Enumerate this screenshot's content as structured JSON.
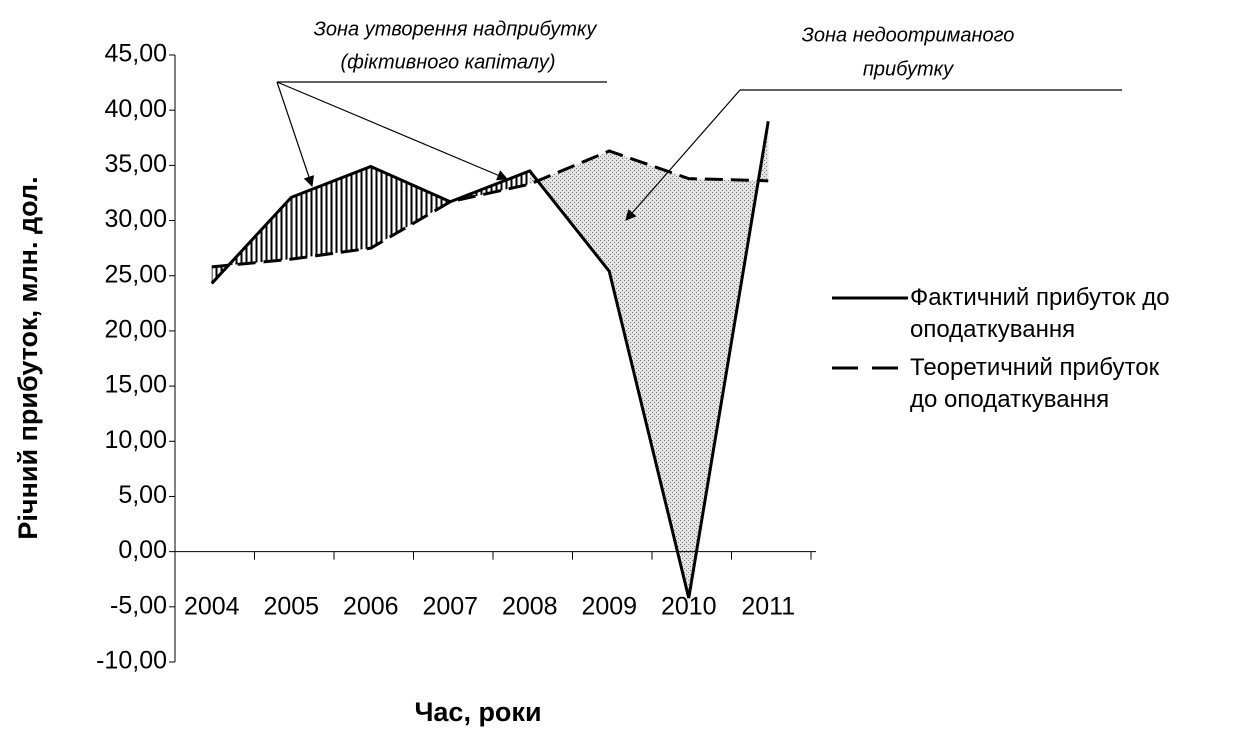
{
  "chart_data": {
    "type": "line",
    "categories": [
      "2004",
      "2005",
      "2006",
      "2007",
      "2008",
      "2009",
      "2010",
      "2011"
    ],
    "series": [
      {
        "name": "Фактичний прибуток до оподаткування",
        "color": "#000000",
        "style": "solid",
        "values": [
          24.3,
          32.1,
          34.9,
          31.7,
          34.5,
          25.4,
          -4.2,
          39.0
        ]
      },
      {
        "name": "Теоретичний прибуток до оподаткування",
        "color": "#000000",
        "style": "dashed",
        "values": [
          25.8,
          26.5,
          27.5,
          31.7,
          33.3,
          36.3,
          33.8,
          33.6
        ]
      }
    ],
    "ylim": [
      -10,
      45
    ],
    "yticks": [
      {
        "value": -10,
        "label": "-10,00"
      },
      {
        "value": -5,
        "label": "-5,00"
      },
      {
        "value": 0,
        "label": "0,00"
      },
      {
        "value": 5,
        "label": "5,00"
      },
      {
        "value": 10,
        "label": "10,00"
      },
      {
        "value": 15,
        "label": "15,00"
      },
      {
        "value": 20,
        "label": "20,00"
      },
      {
        "value": 25,
        "label": "25,00"
      },
      {
        "value": 30,
        "label": "30,00"
      },
      {
        "value": 35,
        "label": "35,00"
      },
      {
        "value": 40,
        "label": "40,00"
      },
      {
        "value": 45,
        "label": "45,00"
      }
    ],
    "ylabel": "Річний прибуток,  млн. дол.",
    "xlabel": "Час, роки",
    "annotations": [
      "Зона утворення надприбутку",
      "(фіктивного капіталу)",
      "Зона недоотриманого",
      "прибутку"
    ],
    "legend": "right"
  }
}
